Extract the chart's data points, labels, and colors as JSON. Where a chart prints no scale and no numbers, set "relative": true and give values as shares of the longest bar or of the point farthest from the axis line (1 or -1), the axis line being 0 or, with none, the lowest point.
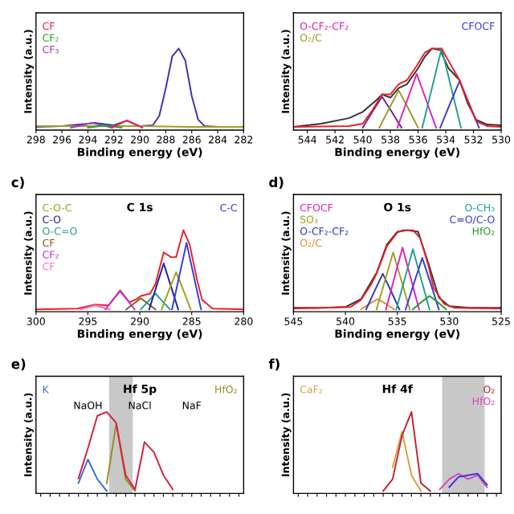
{
  "chart_data": [
    {
      "type": "line",
      "xlabel": "Binding energy (eV)",
      "ylabel": "Intensity (a.u.)",
      "relative": true,
      "tick_labels": "x",
      "xlim": [
        298,
        282
      ],
      "xticks": [
        298,
        296,
        294,
        292,
        290,
        288,
        286,
        284,
        282
      ],
      "series": [
        {
          "color": "#4a2ab8",
          "x": [
            298,
            296,
            294,
            293.5,
            292,
            291,
            290,
            289,
            288.5,
            288,
            287.5,
            287,
            286.5,
            286,
            285.5,
            285,
            284
          ],
          "values": [
            0.01,
            0.02,
            0.05,
            0.06,
            0.03,
            0.09,
            0.02,
            0.03,
            0.15,
            0.5,
            0.9,
            1.0,
            0.85,
            0.4,
            0.1,
            0.02,
            0.01
          ]
        },
        {
          "color": "#a0a020",
          "x": [
            298,
            294,
            290,
            286,
            282
          ],
          "values": [
            0.02,
            0.02,
            0.02,
            0.01,
            0.01
          ]
        },
        {
          "name": "CF₃",
          "color": "#a040c0",
          "x": [
            295.3,
            294.5,
            293.7,
            292.9,
            292.1
          ],
          "values": [
            0,
            0.03,
            0.06,
            0.03,
            0
          ]
        },
        {
          "name": "CF₂",
          "color": "#20a020",
          "x": [
            294,
            293.3,
            292.7,
            292.1,
            291.4
          ],
          "values": [
            0,
            0.015,
            0.03,
            0.015,
            0
          ]
        },
        {
          "name": "CF",
          "color": "#e8206a",
          "x": [
            292.2,
            291.6,
            291,
            290.4,
            289.8
          ],
          "values": [
            0,
            0.045,
            0.09,
            0.045,
            0
          ]
        }
      ]
    },
    {
      "type": "line",
      "xlabel": "Binding energy (eV)",
      "ylabel": "Intensity (a.u.)",
      "relative": true,
      "tick_labels": "x",
      "xlim": [
        545,
        530
      ],
      "xticks": [
        544,
        542,
        540,
        538,
        536,
        534,
        532,
        530
      ],
      "series": [
        {
          "color": "#333333",
          "x": [
            545,
            543,
            541,
            540,
            539,
            538.6,
            538,
            537.4,
            536.8,
            536,
            535.5,
            535,
            534.4,
            533.8,
            533,
            532.4,
            531.8,
            531,
            530
          ],
          "values": [
            0.01,
            0.05,
            0.12,
            0.2,
            0.35,
            0.42,
            0.38,
            0.5,
            0.55,
            0.75,
            0.9,
            1.0,
            0.98,
            0.75,
            0.6,
            0.3,
            0.1,
            0.04,
            0.03
          ]
        },
        {
          "color": "#6a2a8a",
          "x": [
            540,
            539.3,
            538.6,
            537.9,
            537.2
          ],
          "values": [
            0,
            0.2,
            0.39,
            0.2,
            0
          ]
        },
        {
          "name": "O₂/C",
          "color": "#9a9a20",
          "x": [
            538.8,
            538.1,
            537.4,
            536.7,
            536
          ],
          "values": [
            0,
            0.24,
            0.47,
            0.24,
            0
          ]
        },
        {
          "name": "O-CF₂-CF₂",
          "color": "#e020c0",
          "x": [
            537.5,
            536.8,
            536.1,
            535.4,
            534.7
          ],
          "values": [
            0,
            0.34,
            0.68,
            0.34,
            0
          ]
        },
        {
          "color": "#20a090",
          "x": [
            535.7,
            535,
            534.3,
            533.6,
            532.9
          ],
          "values": [
            0,
            0.5,
            1.0,
            0.5,
            0
          ]
        },
        {
          "name": "CFOCF",
          "color": "#3a3ad8",
          "x": [
            534.4,
            533.7,
            533,
            532.3,
            531.6
          ],
          "values": [
            0,
            0.3,
            0.59,
            0.3,
            0
          ]
        },
        {
          "color": "#e8202a",
          "x": [
            545,
            541,
            540,
            539.3,
            538.6,
            538,
            537.4,
            536.8,
            536.1,
            535.5,
            535,
            534.3,
            533.6,
            533,
            532.4,
            531.8,
            531,
            530
          ],
          "values": [
            0.01,
            0.02,
            0.05,
            0.22,
            0.42,
            0.42,
            0.55,
            0.6,
            0.78,
            0.95,
            1.0,
            1.0,
            0.78,
            0.6,
            0.33,
            0.08,
            0.02,
            0.01
          ]
        }
      ]
    },
    {
      "type": "line",
      "title": "C 1s",
      "subtitle": "c)",
      "xlabel": "Binding energy (eV)",
      "ylabel": "Intensity (a.u.)",
      "relative": true,
      "tick_labels": "x",
      "xlim": [
        300,
        280
      ],
      "xticks": [
        300,
        295,
        290,
        285,
        280
      ],
      "series": [
        {
          "color": "#e8202a",
          "x": [
            300,
            296,
            294.3,
            293,
            291.9,
            291,
            290.3,
            289.9,
            289,
            288.5,
            287.7,
            287,
            286.5,
            285.8,
            285.2,
            284.5,
            284,
            283,
            280
          ],
          "values": [
            0,
            0.01,
            0.06,
            0.05,
            0.24,
            0.09,
            0.13,
            0.17,
            0.2,
            0.32,
            0.72,
            0.66,
            0.66,
            1.0,
            0.82,
            0.38,
            0.12,
            0.01,
            0
          ]
        },
        {
          "name": "CF",
          "color": "#ff70b8",
          "x": [
            295.7,
            295,
            294.3,
            293.6,
            292.9
          ],
          "values": [
            0,
            0.025,
            0.05,
            0.025,
            0
          ]
        },
        {
          "name": "CF₂",
          "color": "#c828d0",
          "x": [
            293.3,
            292.6,
            291.9,
            291.2,
            290.5
          ],
          "values": [
            0,
            0.12,
            0.23,
            0.12,
            0
          ]
        },
        {
          "name": "CF",
          "color": "#8a5a20",
          "x": [
            291.3,
            290.6,
            289.9,
            289.2,
            288.5
          ],
          "values": [
            0,
            0.07,
            0.14,
            0.07,
            0
          ]
        },
        {
          "name": "O-C=O",
          "color": "#20a090",
          "x": [
            289.9,
            289.2,
            288.5,
            287.8,
            287.1
          ],
          "values": [
            0,
            0.1,
            0.2,
            0.1,
            0
          ]
        },
        {
          "name": "C-O",
          "color": "#2020a0",
          "x": [
            289.1,
            288.4,
            287.7,
            287,
            286.3
          ],
          "values": [
            0,
            0.29,
            0.58,
            0.29,
            0
          ]
        },
        {
          "name": "C-O-C",
          "color": "#a0a020",
          "x": [
            287.9,
            287.2,
            286.5,
            285.8,
            285.1
          ],
          "values": [
            0,
            0.24,
            0.47,
            0.24,
            0
          ]
        },
        {
          "name": "C-C",
          "color": "#3a3ad8",
          "x": [
            286.9,
            286.2,
            285.5,
            284.8,
            284.1
          ],
          "values": [
            0,
            0.42,
            0.84,
            0.42,
            0
          ]
        }
      ]
    },
    {
      "type": "line",
      "title": "O 1s",
      "subtitle": "d)",
      "xlabel": "Binding energy (eV)",
      "ylabel": "Intensity (a.u.)",
      "relative": true,
      "tick_labels": "x",
      "xlim": [
        545,
        525
      ],
      "xticks": [
        545,
        540,
        535,
        530,
        525
      ],
      "series": [
        {
          "color": "#333333",
          "x": [
            545,
            542,
            540,
            538.5,
            537,
            536,
            535,
            534,
            533,
            532,
            531,
            530,
            528,
            525
          ],
          "values": [
            0.02,
            0.02,
            0.03,
            0.13,
            0.46,
            0.82,
            0.98,
            1.0,
            0.98,
            0.58,
            0.15,
            0.04,
            0.02,
            0.02
          ]
        },
        {
          "name": "O₂/C",
          "color": "#e09030",
          "x": [
            538.5,
            537.7,
            536.9,
            536.1,
            535.3
          ],
          "values": [
            0,
            0.07,
            0.13,
            0.07,
            0
          ]
        },
        {
          "name": "O-CF₂-CF₂",
          "color": "#2a3ab8",
          "x": [
            538,
            537.2,
            536.4,
            535.6,
            534.8
          ],
          "values": [
            0,
            0.23,
            0.45,
            0.23,
            0
          ]
        },
        {
          "name": "SO₃",
          "color": "#a0a020",
          "x": [
            537,
            536.2,
            535.4,
            534.6,
            533.8
          ],
          "values": [
            0,
            0.36,
            0.72,
            0.36,
            0
          ]
        },
        {
          "name": "CFOCF",
          "color": "#e020c0",
          "x": [
            536.1,
            535.3,
            534.5,
            533.7,
            532.9
          ],
          "values": [
            0,
            0.39,
            0.78,
            0.39,
            0
          ]
        },
        {
          "name": "O-CH₃",
          "color": "#20a090",
          "x": [
            535.1,
            534.3,
            533.5,
            532.7,
            531.9
          ],
          "values": [
            0,
            0.38,
            0.76,
            0.38,
            0
          ]
        },
        {
          "name": "C=O/C-O",
          "color": "#3a3ad8",
          "x": [
            534.2,
            533.4,
            532.6,
            531.8,
            531
          ],
          "values": [
            0,
            0.33,
            0.65,
            0.33,
            0
          ]
        },
        {
          "name": "HfO₂",
          "color": "#20a020",
          "x": [
            533.5,
            532.7,
            531.9,
            531.1,
            530.3
          ],
          "values": [
            0,
            0.09,
            0.17,
            0.09,
            0
          ]
        },
        {
          "color": "#e8202a",
          "x": [
            545,
            539.5,
            538.5,
            537.5,
            537,
            536,
            535,
            534.5,
            533.5,
            532.8,
            532,
            531.5,
            530.5,
            529.5,
            525
          ],
          "values": [
            0.01,
            0.03,
            0.12,
            0.32,
            0.45,
            0.8,
            0.97,
            1.0,
            1.0,
            0.9,
            0.55,
            0.27,
            0.07,
            0.02,
            0.01
          ]
        }
      ]
    },
    {
      "type": "line",
      "title": "Hf 5p",
      "subtitle": "e)",
      "ylabel": "Intensity (a.u.)",
      "relative": true,
      "tick_labels": false,
      "categories": [
        null,
        null,
        null,
        null,
        null,
        null,
        null,
        null,
        null,
        null,
        null,
        null,
        null,
        null,
        null,
        null,
        null,
        null,
        null,
        null,
        null,
        null
      ],
      "annotations": [
        "NaOH",
        "NaCl",
        "NaF"
      ],
      "series": [
        {
          "name": "K",
          "color": "#3a6ad8",
          "values": [
            null,
            null,
            null,
            null,
            0.1,
            0.4,
            0.15,
            0,
            null,
            null,
            null,
            null,
            null,
            null,
            null,
            null,
            null,
            null,
            null,
            null,
            null,
            null
          ]
        },
        {
          "name": "HfO₂",
          "color": "#9a8a20",
          "values": [
            null,
            null,
            null,
            null,
            null,
            null,
            null,
            0.1,
            0.85,
            0.15,
            0,
            null,
            null,
            null,
            null,
            null,
            null,
            null,
            null,
            null,
            null,
            null
          ]
        },
        {
          "color": "#d8203a",
          "values": [
            null,
            null,
            null,
            null,
            0.16,
            0.54,
            0.95,
            1.0,
            0.86,
            0.2,
            0.02,
            0.62,
            0.49,
            0.2,
            0.02,
            null,
            null,
            null,
            null,
            null,
            null,
            null
          ]
        }
      ]
    },
    {
      "type": "line",
      "title": "Hf 4f",
      "subtitle": "f)",
      "ylabel": "Intensity (a.u.)",
      "relative": true,
      "tick_labels": false,
      "categories": [
        null,
        null,
        null,
        null,
        null,
        null,
        null,
        null,
        null,
        null,
        null,
        null,
        null,
        null,
        null,
        null,
        null,
        null,
        null,
        null,
        null,
        null
      ],
      "series": [
        {
          "name": "CaF₂",
          "color": "#d8a040",
          "values": [
            null,
            null,
            null,
            null,
            null,
            null,
            null,
            null,
            null,
            null,
            0.3,
            0.75,
            0.2,
            0,
            null,
            null,
            null,
            null,
            null,
            null,
            null,
            null
          ]
        },
        {
          "name": "O₂",
          "color": "#c8202a",
          "values": [
            null,
            null,
            null,
            null,
            null,
            null,
            null,
            null,
            null,
            0,
            0.15,
            0.7,
            1.0,
            0.1,
            0,
            null,
            null,
            null,
            null,
            null,
            null,
            null
          ]
        },
        {
          "name": "HfO₂",
          "color": "#e040c0",
          "values": [
            null,
            null,
            null,
            null,
            null,
            null,
            null,
            null,
            null,
            null,
            null,
            null,
            null,
            null,
            null,
            0.02,
            0.15,
            0.22,
            0.15,
            0.2,
            0.05,
            null
          ]
        },
        {
          "color": "#3a3ad8",
          "values": [
            null,
            null,
            null,
            null,
            null,
            null,
            null,
            null,
            null,
            null,
            null,
            null,
            null,
            null,
            null,
            null,
            0.05,
            0.18,
            0.2,
            0.22,
            0.08,
            null
          ]
        }
      ]
    }
  ]
}
